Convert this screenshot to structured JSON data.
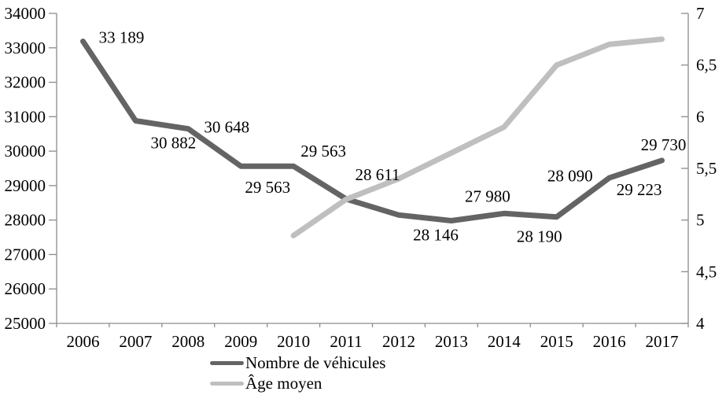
{
  "chart_data": {
    "type": "line",
    "title": "",
    "xlabel": "",
    "ylabel_left": "",
    "ylabel_right": "",
    "grid": false,
    "legend_position": "bottom",
    "background_color": "#ffffff",
    "axis_color": "#8c8c8c",
    "text_color": "#000000",
    "categories": [
      "2006",
      "2007",
      "2008",
      "2009",
      "2010",
      "2011",
      "2012",
      "2013",
      "2014",
      "2015",
      "2016",
      "2017"
    ],
    "series": [
      {
        "name": "Nombre de véhicules",
        "axis": "left",
        "color": "#646464",
        "values": [
          33189,
          30882,
          30648,
          29563,
          29563,
          28611,
          28146,
          27980,
          28190,
          28090,
          29223,
          29730
        ],
        "data_labels": [
          "33 189",
          "30 882",
          "30 648",
          "29 563",
          "29 563",
          "28 611",
          "28 146",
          "27 980",
          "28 190",
          "28 090",
          "29 223",
          "29 730"
        ],
        "label_offsets": [
          [
            49,
            -5
          ],
          [
            48,
            28
          ],
          [
            49,
            -2
          ],
          [
            34,
            27
          ],
          [
            38,
            -19
          ],
          [
            40,
            -31
          ],
          [
            47,
            25
          ],
          [
            46,
            -31
          ],
          [
            45,
            29
          ],
          [
            17,
            -52
          ],
          [
            38,
            15
          ],
          [
            2,
            -20
          ]
        ]
      },
      {
        "name": "Âge moyen",
        "axis": "right",
        "color": "#bfbfbf",
        "values": [
          null,
          null,
          null,
          null,
          4.85,
          5.2,
          5.4,
          5.65,
          5.9,
          6.5,
          6.7,
          6.75
        ],
        "data_labels": null,
        "label_offsets": null
      }
    ],
    "left_axis": {
      "min": 25000,
      "max": 34000,
      "step": 1000,
      "tick_labels": [
        "34000",
        "33000",
        "32000",
        "31000",
        "30000",
        "29000",
        "28000",
        "27000",
        "26000",
        "25000"
      ]
    },
    "right_axis": {
      "min": 4,
      "max": 7,
      "step": 0.5,
      "tick_labels": [
        "7",
        "6,5",
        "6",
        "5,5",
        "5",
        "4,5",
        "4"
      ]
    }
  },
  "legend": {
    "items": [
      {
        "label": "Nombre de véhicules",
        "color": "#646464"
      },
      {
        "label": "Âge moyen",
        "color": "#bfbfbf"
      }
    ]
  }
}
